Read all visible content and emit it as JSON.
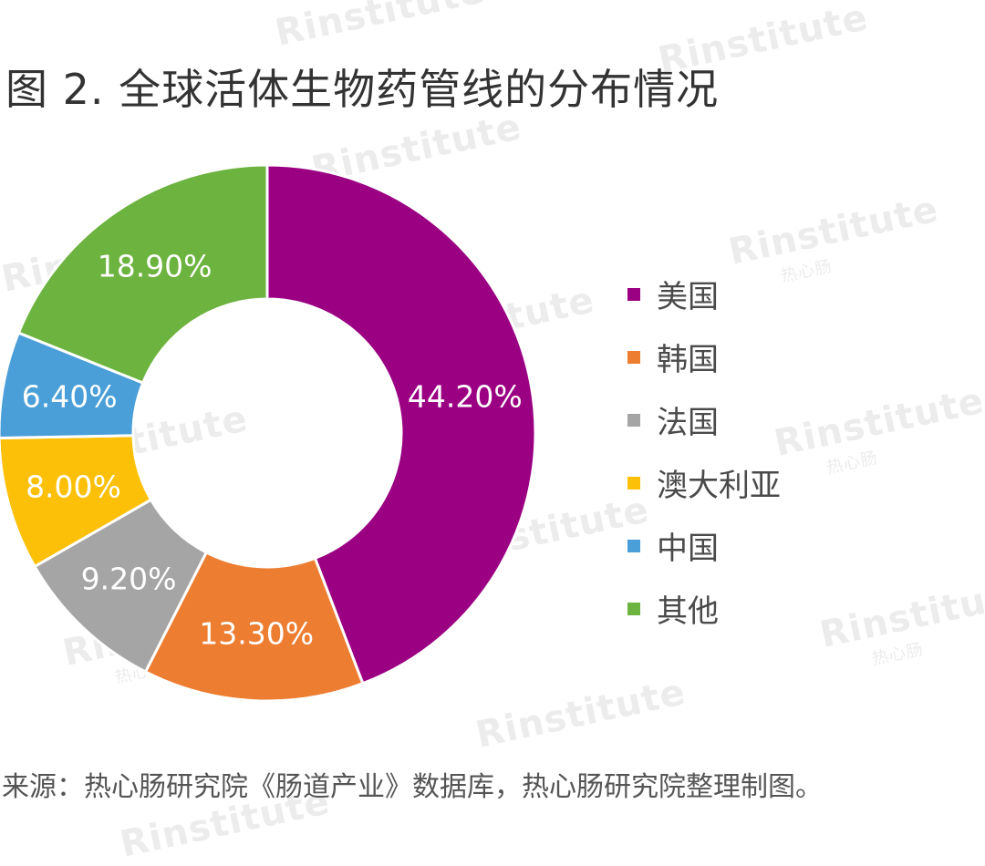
{
  "title": "图 2. 全球活体生物药管线的分布情况",
  "source": "来源：热心肠研究院《肠道产业》数据库，热心肠研究院整理制图。",
  "watermark": {
    "logo": "Rinstitute",
    "sub": "热心肠"
  },
  "chart_data": {
    "type": "pie",
    "donut": true,
    "categories": [
      "美国",
      "韩国",
      "法国",
      "澳大利亚",
      "中国",
      "其他"
    ],
    "values": [
      44.2,
      13.3,
      9.2,
      8.0,
      6.4,
      18.9
    ],
    "labels": [
      "44.20%",
      "13.30%",
      "9.20%",
      "8.00%",
      "6.40%",
      "18.90%"
    ],
    "colors": [
      "#9b0083",
      "#ed7d31",
      "#a5a5a5",
      "#fdc009",
      "#4a9fd8",
      "#6db33f"
    ],
    "legend_position": "right"
  }
}
